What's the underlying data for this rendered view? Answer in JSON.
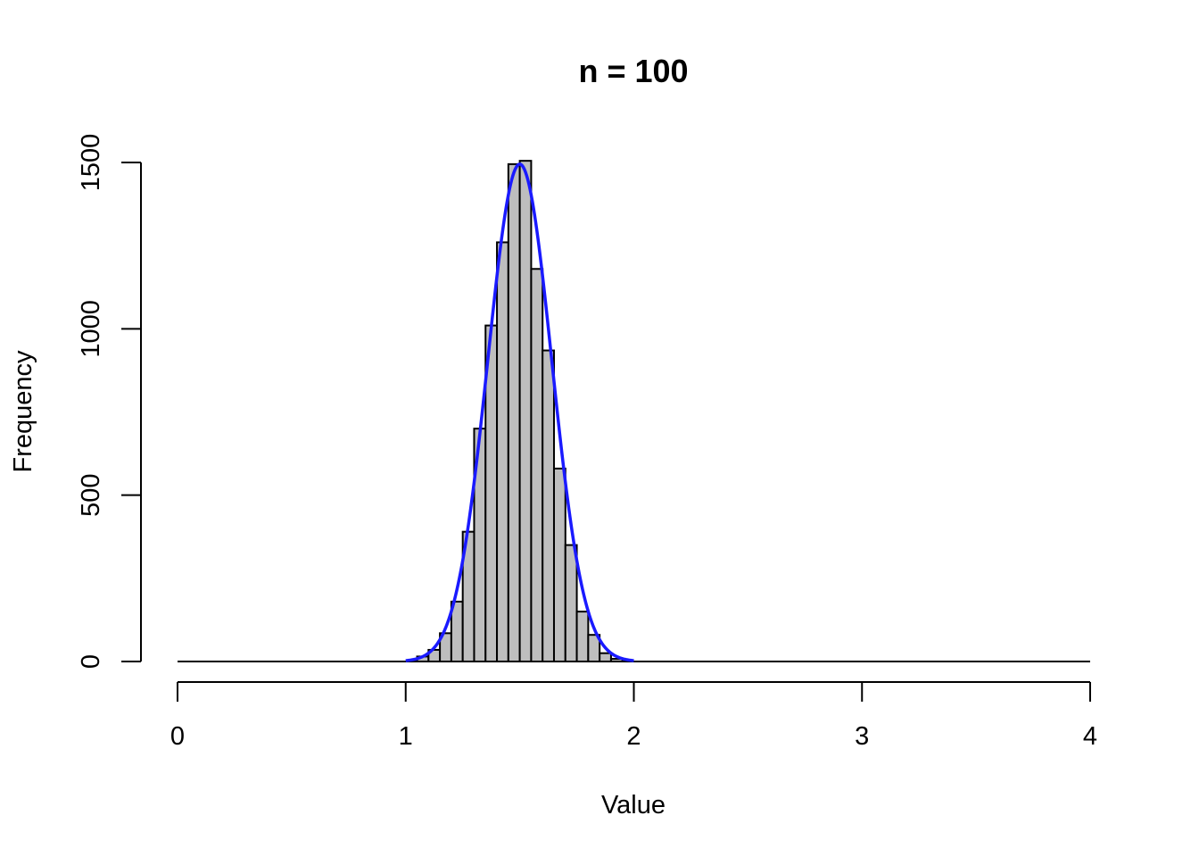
{
  "chart_data": {
    "type": "bar",
    "title": "n = 100",
    "xlabel": "Value",
    "ylabel": "Frequency",
    "xlim": [
      0,
      4
    ],
    "ylim": [
      0,
      1500
    ],
    "x_ticks": [
      "0",
      "1",
      "2",
      "3",
      "4"
    ],
    "y_ticks": [
      "0",
      "500",
      "1000",
      "1500"
    ],
    "grid": false,
    "legend": "none",
    "bin_width": 0.05,
    "bins": [
      {
        "start": 1.05,
        "end": 1.1,
        "count": 15
      },
      {
        "start": 1.1,
        "end": 1.15,
        "count": 35
      },
      {
        "start": 1.15,
        "end": 1.2,
        "count": 85
      },
      {
        "start": 1.2,
        "end": 1.25,
        "count": 180
      },
      {
        "start": 1.25,
        "end": 1.3,
        "count": 390
      },
      {
        "start": 1.3,
        "end": 1.35,
        "count": 700
      },
      {
        "start": 1.35,
        "end": 1.4,
        "count": 1010
      },
      {
        "start": 1.4,
        "end": 1.45,
        "count": 1260
      },
      {
        "start": 1.45,
        "end": 1.5,
        "count": 1495
      },
      {
        "start": 1.5,
        "end": 1.55,
        "count": 1505
      },
      {
        "start": 1.55,
        "end": 1.6,
        "count": 1180
      },
      {
        "start": 1.6,
        "end": 1.65,
        "count": 935
      },
      {
        "start": 1.65,
        "end": 1.7,
        "count": 580
      },
      {
        "start": 1.7,
        "end": 1.75,
        "count": 350
      },
      {
        "start": 1.75,
        "end": 1.8,
        "count": 150
      },
      {
        "start": 1.8,
        "end": 1.85,
        "count": 80
      },
      {
        "start": 1.85,
        "end": 1.9,
        "count": 25
      },
      {
        "start": 1.9,
        "end": 1.95,
        "count": 8
      }
    ],
    "baseline": {
      "from": 0,
      "to": 4,
      "y": 0
    },
    "curve": {
      "type": "normal_density_scaled",
      "color": "#1a1aff",
      "mean": 1.5,
      "sd": 0.14,
      "peak": 1495,
      "x_range": [
        1.0,
        2.0
      ]
    },
    "bar_color": "#bebebe"
  }
}
